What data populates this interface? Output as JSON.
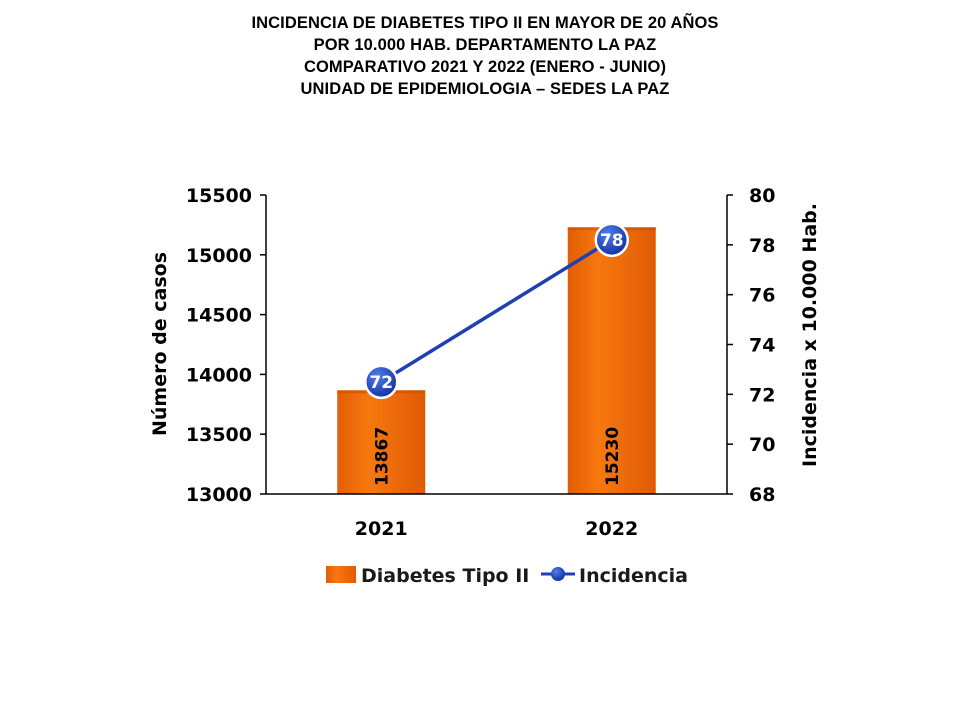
{
  "title_lines": [
    "INCIDENCIA DE DIABETES TIPO II  EN MAYOR DE 20 AÑOS",
    "POR 10.000 HAB. DEPARTAMENTO LA PAZ",
    "COMPARATIVO 2021 Y 2022 (ENERO - JUNIO)",
    "UNIDAD DE EPIDEMIOLOGIA – SEDES LA PAZ"
  ],
  "colors": {
    "bar": "#f26a0a",
    "bar_dark": "#c85200",
    "line": "#1f3fb5",
    "marker": "#1e3fbf",
    "axis": "#000000"
  },
  "chart_data": {
    "type": "bar",
    "categories": [
      "2021",
      "2022"
    ],
    "series": [
      {
        "name": "Diabetes Tipo II",
        "type": "bar",
        "axis": "left",
        "values": [
          13867,
          15230
        ],
        "labels": [
          "13867",
          "15230"
        ]
      },
      {
        "name": "Incidencia",
        "type": "line",
        "axis": "right",
        "values": [
          72.5,
          78.2
        ],
        "labels": [
          "72",
          "78"
        ]
      }
    ],
    "ylabel": "Número de casos",
    "ylabel_right": "Incidencia x 10.000 Hab.",
    "ylim": [
      13000,
      15500
    ],
    "yticks": [
      "13000",
      "13500",
      "14000",
      "14500",
      "15000",
      "15500"
    ],
    "ylim_right": [
      68,
      80
    ],
    "yticks_right": [
      "68",
      "70",
      "72",
      "74",
      "76",
      "78",
      "80"
    ],
    "grid": false,
    "legend": "bottom"
  }
}
